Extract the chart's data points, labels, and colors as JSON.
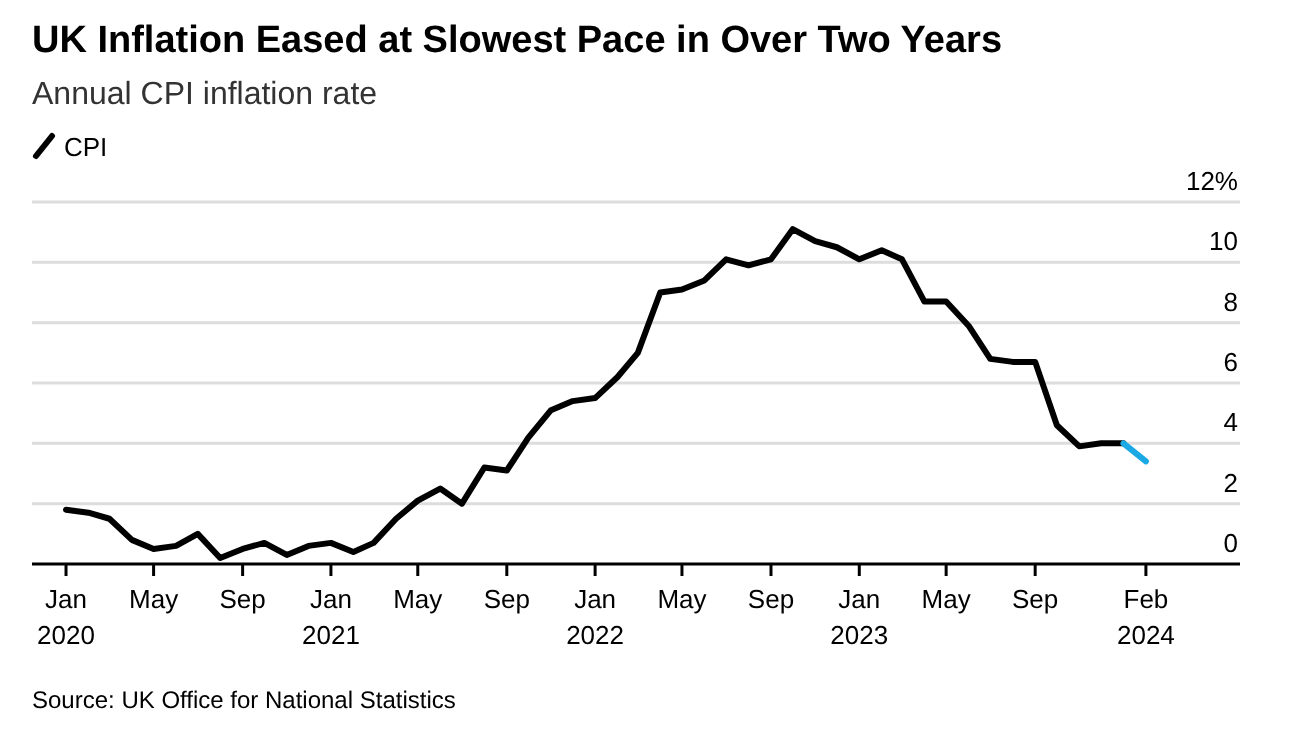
{
  "chart_data": {
    "type": "line",
    "title": "UK Inflation Eased at Slowest Pace in Over Two Years",
    "subtitle": "Annual CPI inflation rate",
    "x": [
      "2020-01",
      "2020-02",
      "2020-03",
      "2020-04",
      "2020-05",
      "2020-06",
      "2020-07",
      "2020-08",
      "2020-09",
      "2020-10",
      "2020-11",
      "2020-12",
      "2021-01",
      "2021-02",
      "2021-03",
      "2021-04",
      "2021-05",
      "2021-06",
      "2021-07",
      "2021-08",
      "2021-09",
      "2021-10",
      "2021-11",
      "2021-12",
      "2022-01",
      "2022-02",
      "2022-03",
      "2022-04",
      "2022-05",
      "2022-06",
      "2022-07",
      "2022-08",
      "2022-09",
      "2022-10",
      "2022-11",
      "2022-12",
      "2023-01",
      "2023-02",
      "2023-03",
      "2023-04",
      "2023-05",
      "2023-06",
      "2023-07",
      "2023-08",
      "2023-09",
      "2023-10",
      "2023-11",
      "2023-12",
      "2024-01"
    ],
    "series": [
      {
        "name": "CPI",
        "color": "#000000",
        "values": [
          1.8,
          1.7,
          1.5,
          0.8,
          0.5,
          0.6,
          1.0,
          0.2,
          0.5,
          0.7,
          0.3,
          0.6,
          0.7,
          0.4,
          0.7,
          1.5,
          2.1,
          2.5,
          2.0,
          3.2,
          3.1,
          4.2,
          5.1,
          5.4,
          5.5,
          6.2,
          7.0,
          9.0,
          9.1,
          9.4,
          10.1,
          9.9,
          10.1,
          11.1,
          10.7,
          10.5,
          10.1,
          10.4,
          10.1,
          8.7,
          8.7,
          7.9,
          6.8,
          6.7,
          6.7,
          4.6,
          3.9,
          4.0,
          4.0
        ]
      },
      {
        "color": "#1ba9e6",
        "x": [
          "2024-01",
          "2024-02"
        ],
        "values": [
          4.0,
          3.4
        ]
      }
    ],
    "xlim": [
      "2019-11-15",
      "2024-06-10"
    ],
    "xticks": [
      {
        "value": "2020-01",
        "label": "Jan\n2020"
      },
      {
        "value": "2020-05",
        "label": "May"
      },
      {
        "value": "2020-09",
        "label": "Sep"
      },
      {
        "value": "2021-01",
        "label": "Jan\n2021"
      },
      {
        "value": "2021-05",
        "label": "May"
      },
      {
        "value": "2021-09",
        "label": "Sep"
      },
      {
        "value": "2022-01",
        "label": "Jan\n2022"
      },
      {
        "value": "2022-05",
        "label": "May"
      },
      {
        "value": "2022-09",
        "label": "Sep"
      },
      {
        "value": "2023-01",
        "label": "Jan\n2023"
      },
      {
        "value": "2023-05",
        "label": "May"
      },
      {
        "value": "2023-09",
        "label": "Sep"
      },
      {
        "value": "2024-02",
        "label": "Feb\n2024"
      }
    ],
    "ylim": [
      0,
      12
    ],
    "yticks": [
      0,
      2,
      4,
      6,
      8,
      10,
      {
        "value": 12,
        "label": "12%"
      }
    ],
    "grid": "y",
    "legend": "top left",
    "marker": "none",
    "line_style": "solid",
    "annotations": [
      "Source: UK Office for National Statistics"
    ]
  }
}
